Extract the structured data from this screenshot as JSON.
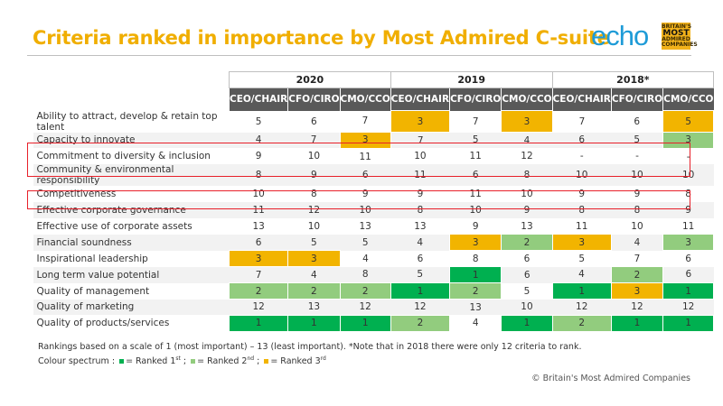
{
  "title": "Criteria ranked in importance by Most Admired C-suite",
  "logos": {
    "echo": "echo",
    "bmac": [
      "BRITAIN'S",
      "MOST",
      "ADMIRED",
      "COMPANIES"
    ]
  },
  "colors": {
    "rank1": "#00B050",
    "rank2": "#92CC7E",
    "rank3": "#F2B400",
    "title": "#F0AE00",
    "header": "#595959",
    "highlight_box": "#E8202A"
  },
  "table": {
    "years": [
      "2020",
      "2019",
      "2018*"
    ],
    "columns": [
      "CEO/CHAIR",
      "CFO/CIRO",
      "CMO/CCO",
      "CEO/CHAIR",
      "CFO/CIRO",
      "CMO/CCO",
      "CEO/CHAIR",
      "CFO/CIRO",
      "CMO/CCO"
    ],
    "rows": [
      {
        "label": "Ability to attract, develop & retain top talent",
        "values": [
          "5",
          "6",
          "7",
          "3",
          "7",
          "3",
          "7",
          "6",
          "5"
        ]
      },
      {
        "label": "Capacity to innovate",
        "values": [
          "4",
          "7",
          "3",
          "7",
          "5",
          "4",
          "6",
          "5",
          "3"
        ]
      },
      {
        "label": "Commitment to diversity & inclusion",
        "values": [
          "9",
          "10",
          "11",
          "10",
          "11",
          "12",
          "-",
          "-",
          "-"
        ],
        "highlighted": true
      },
      {
        "label": "Community & environmental responsibility",
        "values": [
          "8",
          "9",
          "6",
          "11",
          "6",
          "8",
          "10",
          "10",
          "10"
        ],
        "highlighted": true
      },
      {
        "label": "Competitiveness",
        "values": [
          "10",
          "8",
          "9",
          "9",
          "11",
          "10",
          "9",
          "9",
          "8"
        ]
      },
      {
        "label": "Effective corporate governance",
        "values": [
          "11",
          "12",
          "10",
          "8",
          "10",
          "9",
          "8",
          "8",
          "9"
        ],
        "highlighted": true
      },
      {
        "label": "Effective use of corporate assets",
        "values": [
          "13",
          "10",
          "13",
          "13",
          "9",
          "13",
          "11",
          "10",
          "11"
        ]
      },
      {
        "label": "Financial soundness",
        "values": [
          "6",
          "5",
          "5",
          "4",
          "3",
          "2",
          "3",
          "4",
          "3"
        ]
      },
      {
        "label": "Inspirational leadership",
        "values": [
          "3",
          "3",
          "4",
          "6",
          "8",
          "6",
          "5",
          "7",
          "6"
        ]
      },
      {
        "label": "Long term value potential",
        "values": [
          "7",
          "4",
          "8",
          "5",
          "1",
          "6",
          "4",
          "2",
          "6"
        ]
      },
      {
        "label": "Quality of management",
        "values": [
          "2",
          "2",
          "2",
          "1",
          "2",
          "5",
          "1",
          "3",
          "1"
        ]
      },
      {
        "label": "Quality of marketing",
        "values": [
          "12",
          "13",
          "12",
          "12",
          "13",
          "10",
          "12",
          "12",
          "12"
        ]
      },
      {
        "label": "Quality of products/services",
        "values": [
          "1",
          "1",
          "1",
          "2",
          "4",
          "1",
          "2",
          "1",
          "1"
        ]
      }
    ],
    "cell_colors": [
      [
        0,
        0,
        0,
        3,
        0,
        3,
        0,
        0,
        3
      ],
      [
        0,
        0,
        3,
        0,
        0,
        0,
        0,
        0,
        2
      ],
      [
        0,
        0,
        0,
        0,
        0,
        0,
        0,
        0,
        0
      ],
      [
        0,
        0,
        0,
        0,
        0,
        0,
        0,
        0,
        0
      ],
      [
        0,
        0,
        0,
        0,
        0,
        0,
        0,
        0,
        0
      ],
      [
        0,
        0,
        0,
        0,
        0,
        0,
        0,
        0,
        0
      ],
      [
        0,
        0,
        0,
        0,
        0,
        0,
        0,
        0,
        0
      ],
      [
        0,
        0,
        0,
        0,
        3,
        2,
        3,
        0,
        2
      ],
      [
        3,
        3,
        0,
        0,
        0,
        0,
        0,
        0,
        0
      ],
      [
        0,
        0,
        0,
        0,
        1,
        0,
        0,
        2,
        0
      ],
      [
        2,
        2,
        2,
        1,
        2,
        0,
        1,
        3,
        1
      ],
      [
        0,
        0,
        0,
        0,
        0,
        0,
        0,
        0,
        0
      ],
      [
        1,
        1,
        1,
        2,
        0,
        1,
        2,
        1,
        1
      ]
    ]
  },
  "notes": {
    "line1": "Rankings based on a scale of 1 (most important) – 13 (least important). *Note that in 2018 there were only 12 criteria to rank.",
    "legend_prefix": "Colour spectrum :",
    "legend1": "= Ranked 1",
    "legend1_sup": "st",
    "legend2": "= Ranked 2",
    "legend2_sup": "nd",
    "legend3": "= Ranked 3",
    "legend3_sup": "rd"
  },
  "copyright": "© Britain's Most Admired Companies"
}
